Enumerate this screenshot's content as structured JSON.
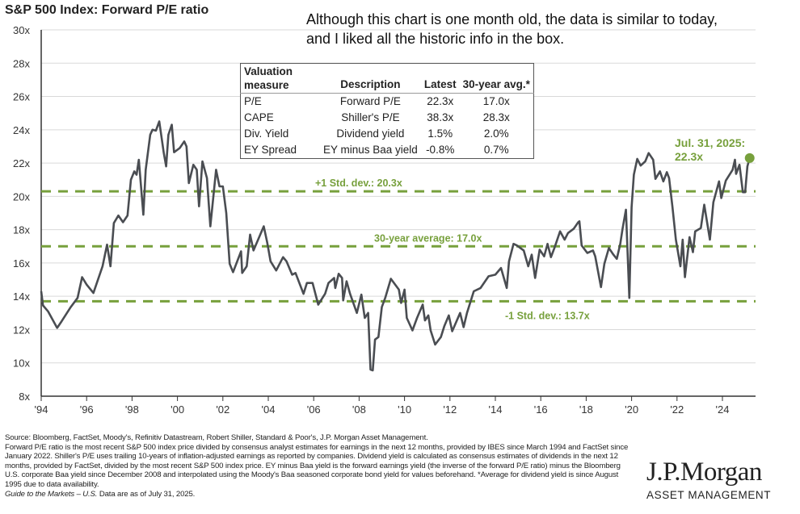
{
  "note": "Although this chart is one month old, the data is similar to today, and I liked all the historic info in the box.",
  "chart_data": {
    "type": "line",
    "title": "S&P 500 Index: Forward P/E ratio",
    "xlabel": "",
    "ylabel": "",
    "ylim": [
      8,
      30
    ],
    "xlim": [
      1994,
      2025.4
    ],
    "grid": true,
    "y_ticks": [
      "8x",
      "10x",
      "12x",
      "14x",
      "16x",
      "18x",
      "20x",
      "22x",
      "24x",
      "26x",
      "28x",
      "30x"
    ],
    "y_tick_values": [
      8,
      10,
      12,
      14,
      16,
      18,
      20,
      22,
      24,
      26,
      28,
      30
    ],
    "x_ticks": [
      "'94",
      "'96",
      "'98",
      "'00",
      "'02",
      "'04",
      "'06",
      "'08",
      "'10",
      "'12",
      "'14",
      "'16",
      "'18",
      "'20",
      "'22",
      "'24"
    ],
    "x_tick_values": [
      1994,
      1996,
      1998,
      2000,
      2002,
      2004,
      2006,
      2008,
      2010,
      2012,
      2014,
      2016,
      2018,
      2020,
      2022,
      2024
    ],
    "reference_lines": [
      {
        "label": "+1 Std. dev.: 20.3x",
        "value": 20.3
      },
      {
        "label": "30-year average: 17.0x",
        "value": 17.0
      },
      {
        "label": "-1 Std. dev.: 13.7x",
        "value": 13.7
      }
    ],
    "last_point": {
      "label_line1": "Jul. 31, 2025:",
      "label_line2": "22.3x",
      "value": 22.3
    },
    "series": [
      {
        "name": "Forward P/E",
        "color": "#4a4d52",
        "points": [
          [
            1994.0,
            14.3
          ],
          [
            1994.08,
            13.45
          ],
          [
            1994.3,
            13.1
          ],
          [
            1994.7,
            12.1
          ],
          [
            1994.9,
            12.5
          ],
          [
            1995.3,
            13.35
          ],
          [
            1995.6,
            13.9
          ],
          [
            1995.8,
            15.15
          ],
          [
            1996.0,
            14.7
          ],
          [
            1996.3,
            14.2
          ],
          [
            1996.7,
            15.8
          ],
          [
            1996.9,
            17.1
          ],
          [
            1997.05,
            15.8
          ],
          [
            1997.2,
            18.4
          ],
          [
            1997.4,
            18.85
          ],
          [
            1997.6,
            18.45
          ],
          [
            1997.8,
            18.85
          ],
          [
            1997.95,
            21.0
          ],
          [
            1998.1,
            21.5
          ],
          [
            1998.2,
            21.3
          ],
          [
            1998.3,
            22.2
          ],
          [
            1998.5,
            18.9
          ],
          [
            1998.6,
            21.6
          ],
          [
            1998.8,
            23.7
          ],
          [
            1998.9,
            24.0
          ],
          [
            1999.05,
            23.95
          ],
          [
            1999.2,
            24.5
          ],
          [
            1999.4,
            22.6
          ],
          [
            1999.5,
            21.8
          ],
          [
            1999.6,
            23.7
          ],
          [
            1999.75,
            24.3
          ],
          [
            1999.85,
            22.65
          ],
          [
            2000.1,
            22.9
          ],
          [
            2000.3,
            23.3
          ],
          [
            2000.4,
            23.0
          ],
          [
            2000.5,
            20.8
          ],
          [
            2000.7,
            21.9
          ],
          [
            2000.85,
            21.6
          ],
          [
            2000.95,
            19.4
          ],
          [
            2001.1,
            22.1
          ],
          [
            2001.3,
            21.1
          ],
          [
            2001.45,
            18.2
          ],
          [
            2001.7,
            21.6
          ],
          [
            2001.85,
            20.6
          ],
          [
            2002.0,
            20.6
          ],
          [
            2002.15,
            19.0
          ],
          [
            2002.3,
            15.95
          ],
          [
            2002.45,
            15.45
          ],
          [
            2002.8,
            16.7
          ],
          [
            2002.85,
            15.4
          ],
          [
            2003.05,
            15.8
          ],
          [
            2003.2,
            17.7
          ],
          [
            2003.35,
            16.75
          ],
          [
            2003.55,
            17.4
          ],
          [
            2003.8,
            18.2
          ],
          [
            2003.95,
            17.25
          ],
          [
            2004.1,
            16.1
          ],
          [
            2004.35,
            15.55
          ],
          [
            2004.65,
            16.35
          ],
          [
            2004.8,
            16.1
          ],
          [
            2005.05,
            15.3
          ],
          [
            2005.2,
            15.4
          ],
          [
            2005.55,
            14.15
          ],
          [
            2005.7,
            14.8
          ],
          [
            2005.95,
            14.8
          ],
          [
            2006.2,
            13.5
          ],
          [
            2006.5,
            14.15
          ],
          [
            2006.65,
            14.8
          ],
          [
            2006.9,
            15.1
          ],
          [
            2006.95,
            14.5
          ],
          [
            2007.1,
            15.35
          ],
          [
            2007.25,
            15.1
          ],
          [
            2007.3,
            13.75
          ],
          [
            2007.45,
            14.9
          ],
          [
            2007.6,
            14.15
          ],
          [
            2007.9,
            13.0
          ],
          [
            2008.1,
            14.1
          ],
          [
            2008.25,
            12.7
          ],
          [
            2008.4,
            13.0
          ],
          [
            2008.5,
            9.6
          ],
          [
            2008.6,
            9.55
          ],
          [
            2008.7,
            11.4
          ],
          [
            2008.85,
            11.55
          ],
          [
            2009.0,
            13.35
          ],
          [
            2009.15,
            13.9
          ],
          [
            2009.4,
            15.05
          ],
          [
            2009.75,
            14.4
          ],
          [
            2009.85,
            13.6
          ],
          [
            2010.0,
            14.4
          ],
          [
            2010.1,
            12.7
          ],
          [
            2010.35,
            11.95
          ],
          [
            2010.55,
            12.7
          ],
          [
            2010.8,
            13.5
          ],
          [
            2010.9,
            12.55
          ],
          [
            2011.05,
            12.85
          ],
          [
            2011.15,
            11.95
          ],
          [
            2011.35,
            11.1
          ],
          [
            2011.6,
            11.55
          ],
          [
            2011.75,
            12.2
          ],
          [
            2011.95,
            12.85
          ],
          [
            2012.1,
            11.9
          ],
          [
            2012.45,
            13.0
          ],
          [
            2012.6,
            12.15
          ],
          [
            2012.75,
            13.0
          ],
          [
            2013.05,
            14.3
          ],
          [
            2013.35,
            14.5
          ],
          [
            2013.7,
            15.2
          ],
          [
            2014.0,
            15.3
          ],
          [
            2014.25,
            15.7
          ],
          [
            2014.5,
            14.5
          ],
          [
            2014.6,
            16.1
          ],
          [
            2014.8,
            17.15
          ],
          [
            2014.95,
            17.05
          ],
          [
            2015.25,
            16.75
          ],
          [
            2015.45,
            15.8
          ],
          [
            2015.6,
            16.5
          ],
          [
            2015.75,
            15.1
          ],
          [
            2015.95,
            16.8
          ],
          [
            2016.15,
            16.4
          ],
          [
            2016.3,
            17.15
          ],
          [
            2016.45,
            16.35
          ],
          [
            2016.6,
            16.9
          ],
          [
            2016.85,
            17.9
          ],
          [
            2017.05,
            17.4
          ],
          [
            2017.2,
            17.8
          ],
          [
            2017.45,
            18.05
          ],
          [
            2017.65,
            18.45
          ],
          [
            2017.7,
            18.5
          ],
          [
            2017.8,
            17.05
          ],
          [
            2018.05,
            16.6
          ],
          [
            2018.3,
            16.75
          ],
          [
            2018.4,
            16.4
          ],
          [
            2018.65,
            14.55
          ],
          [
            2018.8,
            15.95
          ],
          [
            2019.0,
            16.9
          ],
          [
            2019.2,
            16.5
          ],
          [
            2019.35,
            16.25
          ],
          [
            2019.5,
            17.15
          ],
          [
            2019.6,
            18.05
          ],
          [
            2019.75,
            19.2
          ],
          [
            2019.9,
            13.9
          ],
          [
            2020.0,
            19.35
          ],
          [
            2020.1,
            21.3
          ],
          [
            2020.25,
            22.25
          ],
          [
            2020.4,
            21.85
          ],
          [
            2020.6,
            22.1
          ],
          [
            2020.75,
            22.6
          ],
          [
            2020.95,
            22.2
          ],
          [
            2021.05,
            21.05
          ],
          [
            2021.25,
            21.5
          ],
          [
            2021.4,
            20.9
          ],
          [
            2021.55,
            21.45
          ],
          [
            2021.65,
            21.1
          ],
          [
            2021.8,
            19.35
          ],
          [
            2021.95,
            17.4
          ],
          [
            2022.15,
            15.8
          ],
          [
            2022.25,
            17.4
          ],
          [
            2022.35,
            15.15
          ],
          [
            2022.55,
            17.55
          ],
          [
            2022.7,
            16.65
          ],
          [
            2022.8,
            17.9
          ],
          [
            2023.05,
            18.1
          ],
          [
            2023.2,
            19.5
          ],
          [
            2023.45,
            17.4
          ],
          [
            2023.6,
            19.65
          ],
          [
            2023.85,
            20.9
          ],
          [
            2023.95,
            19.9
          ],
          [
            2024.15,
            20.95
          ],
          [
            2024.45,
            21.6
          ],
          [
            2024.55,
            22.2
          ],
          [
            2024.6,
            21.35
          ],
          [
            2024.75,
            21.9
          ],
          [
            2024.9,
            20.25
          ],
          [
            2025.0,
            20.25
          ],
          [
            2025.1,
            21.8
          ],
          [
            2025.2,
            22.3
          ]
        ]
      }
    ],
    "colors": {
      "reference": "#77a03c",
      "dot": "#77a03c",
      "grid": "#d9d9d9"
    }
  },
  "table": {
    "headers": [
      "Valuation measure",
      "Description",
      "Latest",
      "30-year avg.*"
    ],
    "rows": [
      [
        "P/E",
        "Forward P/E",
        "22.3x",
        "17.0x"
      ],
      [
        "CAPE",
        "Shiller's P/E",
        "38.3x",
        "28.3x"
      ],
      [
        "Div. Yield",
        "Dividend yield",
        "1.5%",
        "2.0%"
      ],
      [
        "EY Spread",
        "EY minus Baa yield",
        "-0.8%",
        "0.7%"
      ]
    ]
  },
  "footer": {
    "source": "Source: Bloomberg, FactSet, Moody's, Refinitiv Datastream, Robert Shiller, Standard & Poor's, J.P. Morgan Asset Management.",
    "methodology": "Forward P/E ratio is the most recent S&P 500 index price divided by consensus analyst estimates for earnings in the next 12 months, provided by IBES since March 1994 and FactSet since January 2022. Shiller's P/E uses trailing 10-years of inflation-adjusted earnings as reported by companies. Dividend yield is calculated as consensus estimates of dividends in the next 12 months, provided by FactSet, divided by the most recent S&P 500 index price. EY minus Baa yield is the forward earnings yield (the inverse of the forward P/E ratio) minus the Bloomberg U.S. corporate Baa yield since December 2008 and interpolated using the Moody's Baa seasoned corporate bond yield for values beforehand. *Average for dividend yield is since August 1995 due to data availability.",
    "guide": "Guide to the Markets – U.S.",
    "asof": " Data are as of July 31, 2025."
  },
  "logo": {
    "brand": "J.P.Morgan",
    "sub": "ASSET MANAGEMENT"
  }
}
